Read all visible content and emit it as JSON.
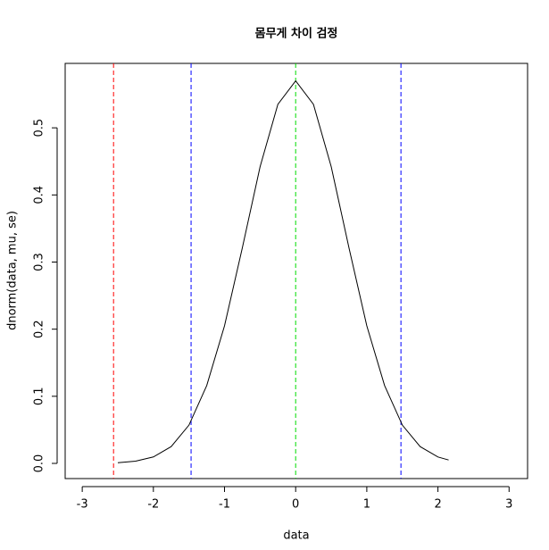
{
  "chart_data": {
    "type": "line",
    "title": "몸무게 차이 검정",
    "xlabel": "data",
    "ylabel": "dnorm(data, mu, se)",
    "x": [
      -2.5,
      -2.25,
      -2,
      -1.75,
      -1.5,
      -1.25,
      -1,
      -0.75,
      -0.5,
      -0.25,
      0,
      0.25,
      0.5,
      0.75,
      1,
      1.25,
      1.5,
      1.75,
      2,
      2.15
    ],
    "series": [
      {
        "color": "#000000",
        "values": [
          0.001,
          0.0033,
          0.0096,
          0.025,
          0.057,
          0.116,
          0.205,
          0.321,
          0.442,
          0.535,
          0.57,
          0.535,
          0.442,
          0.321,
          0.205,
          0.116,
          0.057,
          0.025,
          0.0096,
          0.0051
        ]
      }
    ],
    "vlines": [
      {
        "x": -2.56,
        "color": "#ff0000"
      },
      {
        "x": -1.47,
        "color": "#0000ff"
      },
      {
        "x": 1.48,
        "color": "#0000ff"
      },
      {
        "x": 0,
        "color": "#00dd00"
      }
    ],
    "xlim": [
      -3.24,
      3.26
    ],
    "ylim": [
      -0.0226,
      0.596
    ],
    "xticks": [
      -3,
      -2,
      -1,
      0,
      1,
      2,
      3
    ],
    "yticks": [
      {
        "value": 0,
        "label": "0.0"
      },
      0.1,
      0.2,
      0.3,
      0.4,
      0.5
    ]
  }
}
